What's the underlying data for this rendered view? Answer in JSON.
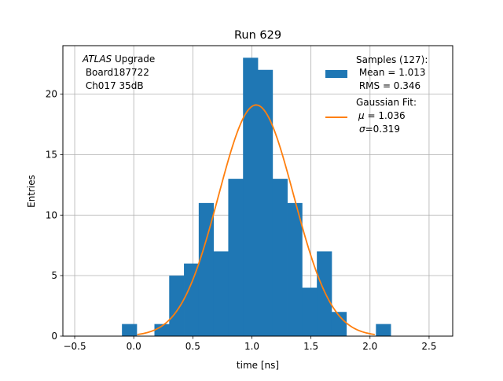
{
  "chart_data": {
    "type": "bar",
    "title": "Run 629",
    "xlabel": "time [ns]",
    "ylabel": "Entries",
    "xlim": [
      -0.6,
      2.7
    ],
    "ylim": [
      0,
      24
    ],
    "grid": true,
    "x_ticks": [
      -0.5,
      0.0,
      0.5,
      1.0,
      1.5,
      2.0,
      2.5
    ],
    "x_tick_labels": [
      "−0.5",
      "0.0",
      "0.5",
      "1.0",
      "1.5",
      "2.0",
      "2.5"
    ],
    "y_ticks": [
      0,
      5,
      10,
      15,
      20
    ],
    "y_tick_labels": [
      "0",
      "5",
      "10",
      "15",
      "20"
    ],
    "bin_width": 0.125,
    "bins": [
      {
        "left": -0.1,
        "count": 1
      },
      {
        "left": 0.175,
        "count": 1
      },
      {
        "left": 0.3,
        "count": 5
      },
      {
        "left": 0.425,
        "count": 6
      },
      {
        "left": 0.55,
        "count": 11
      },
      {
        "left": 0.675,
        "count": 7
      },
      {
        "left": 0.8,
        "count": 13
      },
      {
        "left": 0.925,
        "count": 23
      },
      {
        "left": 1.05,
        "count": 22
      },
      {
        "left": 1.175,
        "count": 13
      },
      {
        "left": 1.3,
        "count": 11
      },
      {
        "left": 1.425,
        "count": 4
      },
      {
        "left": 1.55,
        "count": 7
      },
      {
        "left": 1.675,
        "count": 2
      },
      {
        "left": 2.05,
        "count": 1
      }
    ],
    "fit": {
      "type": "gaussian",
      "mu": 1.036,
      "sigma": 0.319,
      "amplitude": 19.1,
      "x_range": [
        0.03,
        2.04
      ]
    },
    "series_colors": {
      "histogram": "#1f77b4",
      "fit": "#ff7f0e"
    },
    "annotation": {
      "atlas": "ATLAS",
      "upgrade": " Upgrade",
      "board": " Board187722",
      "channel": " Ch017 35dB"
    },
    "legend": {
      "location": "top-right",
      "samples_title": "Samples (127):",
      "samples_mean": " Mean = 1.013",
      "samples_rms": " RMS = 0.346",
      "fit_title": "Gaussian Fit:",
      "fit_mu_symbol": "μ",
      "fit_mu_value": " = 1.036",
      "fit_sigma_symbol": "σ",
      "fit_sigma_value": "=0.319"
    }
  }
}
